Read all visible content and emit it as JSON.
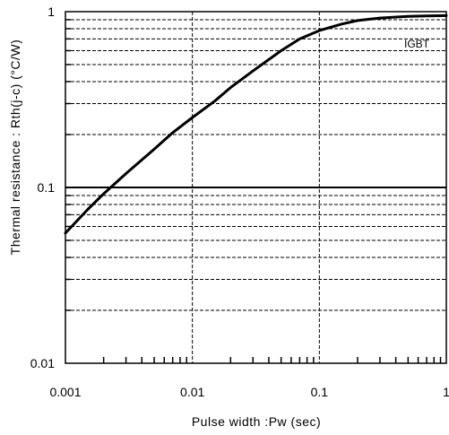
{
  "chart_data": {
    "type": "line",
    "title": "",
    "xlabel": "Pulse width :Pw (sec)",
    "ylabel": "Thermal resistance : Rth(j-c)  (°C/W)",
    "xscale": "log",
    "yscale": "log",
    "xlim": [
      0.001,
      1
    ],
    "ylim": [
      0.01,
      1
    ],
    "x_tick_labels": [
      "0.001",
      "0.01",
      "0.1",
      "1"
    ],
    "y_tick_labels": [
      "0.01",
      "0.1",
      "1"
    ],
    "grid": "dashed, major and minor",
    "annotation": "IGBT",
    "series": [
      {
        "x": [
          0.001,
          0.0015,
          0.002,
          0.003,
          0.005,
          0.007,
          0.01,
          0.015,
          0.02,
          0.03,
          0.05,
          0.07,
          0.1,
          0.15,
          0.2,
          0.3,
          0.5,
          0.7,
          1
        ],
        "y": [
          0.055,
          0.075,
          0.092,
          0.12,
          0.165,
          0.205,
          0.25,
          0.31,
          0.37,
          0.46,
          0.6,
          0.7,
          0.78,
          0.85,
          0.89,
          0.92,
          0.94,
          0.945,
          0.95
        ]
      }
    ]
  }
}
